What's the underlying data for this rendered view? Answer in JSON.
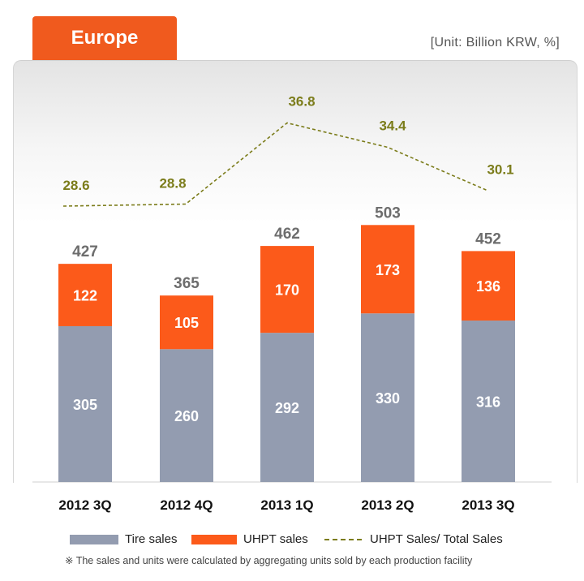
{
  "title": "Europe",
  "unit_label": "[Unit: Billion KRW, %]",
  "legend": {
    "tire": "Tire sales",
    "uhpt": "UHPT sales",
    "ratio": "UHPT Sales/ Total Sales"
  },
  "footnote": "※ The sales and units were calculated by aggregating units sold by each production facility",
  "colors": {
    "tire": "#939cb0",
    "uhpt": "#fc5a1a",
    "ratio": "#7b7c1a",
    "total_label": "#6d6d6d"
  },
  "chart_data": {
    "type": "bar",
    "stacked": true,
    "categories": [
      "2012 3Q",
      "2012 4Q",
      "2013 1Q",
      "2013 2Q",
      "2013 3Q"
    ],
    "series": [
      {
        "name": "Tire sales",
        "values": [
          305,
          260,
          292,
          330,
          316
        ]
      },
      {
        "name": "UHPT sales",
        "values": [
          122,
          105,
          170,
          173,
          136
        ]
      }
    ],
    "totals": [
      427,
      365,
      462,
      503,
      452
    ],
    "line_series": {
      "name": "UHPT Sales/ Total Sales",
      "type": "line",
      "style": "dashed",
      "values": [
        28.6,
        28.8,
        36.8,
        34.4,
        30.1
      ]
    },
    "ylim": [
      0,
      540
    ]
  }
}
